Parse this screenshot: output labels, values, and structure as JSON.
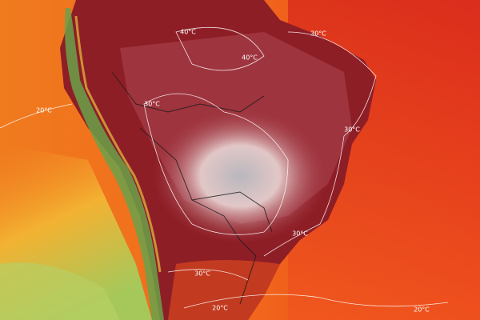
{
  "map": {
    "contour_labels": [
      "20°C",
      "30°C",
      "40°C",
      "40°C",
      "30°C",
      "30°C",
      "30°C",
      "30°C",
      "20°C",
      "20°C"
    ]
  }
}
